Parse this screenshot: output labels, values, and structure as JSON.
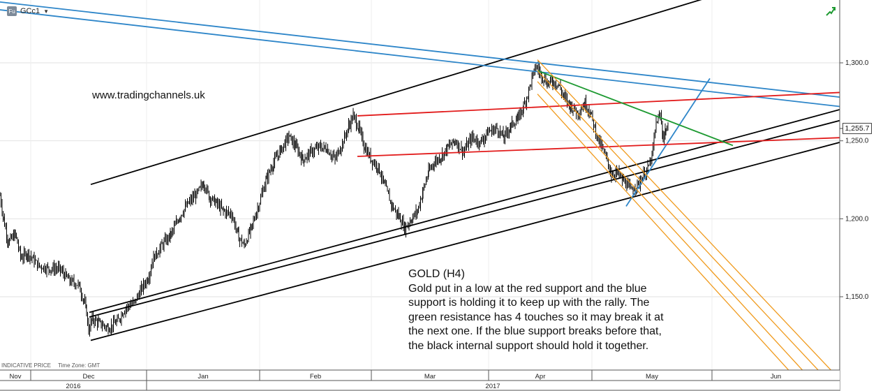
{
  "ticker": {
    "badge": "Fu",
    "symbol": "GCc1"
  },
  "watermark": "www.tradingchannels.uk",
  "annotation": {
    "title": "GOLD (H4)",
    "lines": [
      "Gold put in a low at the red support and the blue",
      "support is holding it to keep up with the rally. The",
      "green resistance has 4 touches so it may break it at",
      "the next one. If the blue support breaks before that,",
      "the black internal support should hold it together."
    ]
  },
  "footer": {
    "left": "INDICATIVE PRICE",
    "tz": "Time Zone: GMT"
  },
  "current_price": "1,255.7",
  "colors": {
    "price": "#000000",
    "black_line": "#000000",
    "blue_line": "#2e86c9",
    "red_line": "#e21b1b",
    "green_line": "#1e9a32",
    "orange_line": "#f09a1c",
    "axis": "#555555",
    "grid": "#e2e2e2"
  },
  "chart_data": {
    "type": "line",
    "style": "ohlc-bars",
    "ylim": [
      1100,
      1345
    ],
    "y_ticks": [
      1150,
      1200,
      1250,
      1300
    ],
    "y_tick_labels": [
      "1,150.0",
      "1,200.0",
      "1,250.0",
      "1,300.0"
    ],
    "month_labels": [
      "Nov",
      "Dec",
      "Jan",
      "Feb",
      "Mar",
      "Apr",
      "May",
      "Jun"
    ],
    "year_labels": [
      "2016",
      "2017"
    ],
    "grid": true,
    "series": [
      {
        "values": [
          [
            0,
            1215
          ],
          [
            5,
            1200
          ],
          [
            12,
            1185
          ],
          [
            22,
            1190
          ],
          [
            30,
            1175
          ],
          [
            40,
            1178
          ],
          [
            55,
            1170
          ],
          [
            70,
            1168
          ],
          [
            85,
            1168
          ],
          [
            100,
            1160
          ],
          [
            112,
            1158
          ],
          [
            120,
            1148
          ],
          [
            124,
            1140
          ],
          [
            127,
            1128
          ],
          [
            132,
            1136
          ],
          [
            142,
            1133
          ],
          [
            155,
            1130
          ],
          [
            168,
            1134
          ],
          [
            180,
            1143
          ],
          [
            192,
            1146
          ],
          [
            204,
            1156
          ],
          [
            212,
            1162
          ],
          [
            220,
            1175
          ],
          [
            232,
            1183
          ],
          [
            245,
            1190
          ],
          [
            258,
            1202
          ],
          [
            270,
            1210
          ],
          [
            282,
            1216
          ],
          [
            292,
            1223
          ],
          [
            300,
            1214
          ],
          [
            310,
            1210
          ],
          [
            320,
            1205
          ],
          [
            332,
            1203
          ],
          [
            342,
            1188
          ],
          [
            350,
            1183
          ],
          [
            360,
            1194
          ],
          [
            372,
            1211
          ],
          [
            382,
            1226
          ],
          [
            392,
            1236
          ],
          [
            402,
            1244
          ],
          [
            414,
            1253
          ],
          [
            424,
            1246
          ],
          [
            434,
            1238
          ],
          [
            446,
            1243
          ],
          [
            458,
            1246
          ],
          [
            468,
            1245
          ],
          [
            480,
            1238
          ],
          [
            492,
            1250
          ],
          [
            500,
            1260
          ],
          [
            506,
            1266
          ],
          [
            514,
            1258
          ],
          [
            522,
            1246
          ],
          [
            532,
            1238
          ],
          [
            542,
            1233
          ],
          [
            552,
            1220
          ],
          [
            562,
            1208
          ],
          [
            572,
            1201
          ],
          [
            580,
            1194
          ],
          [
            590,
            1200
          ],
          [
            598,
            1205
          ],
          [
            606,
            1218
          ],
          [
            614,
            1230
          ],
          [
            622,
            1236
          ],
          [
            632,
            1240
          ],
          [
            642,
            1246
          ],
          [
            652,
            1250
          ],
          [
            664,
            1243
          ],
          [
            676,
            1252
          ],
          [
            688,
            1249
          ],
          [
            700,
            1256
          ],
          [
            712,
            1258
          ],
          [
            722,
            1252
          ],
          [
            732,
            1260
          ],
          [
            742,
            1264
          ],
          [
            750,
            1272
          ],
          [
            756,
            1280
          ],
          [
            762,
            1290
          ],
          [
            768,
            1298
          ],
          [
            776,
            1292
          ],
          [
            784,
            1287
          ],
          [
            792,
            1288
          ],
          [
            800,
            1286
          ],
          [
            808,
            1278
          ],
          [
            818,
            1272
          ],
          [
            828,
            1268
          ],
          [
            838,
            1274
          ],
          [
            846,
            1268
          ],
          [
            852,
            1258
          ],
          [
            858,
            1250
          ],
          [
            864,
            1244
          ],
          [
            870,
            1237
          ],
          [
            876,
            1228
          ],
          [
            884,
            1230
          ],
          [
            892,
            1225
          ],
          [
            898,
            1222
          ],
          [
            904,
            1218
          ],
          [
            910,
            1221
          ],
          [
            916,
            1223
          ],
          [
            922,
            1228
          ],
          [
            928,
            1232
          ],
          [
            934,
            1240
          ],
          [
            940,
            1262
          ],
          [
            946,
            1266
          ],
          [
            950,
            1252
          ],
          [
            954,
            1258
          ],
          [
            958,
            1256
          ]
        ]
      }
    ],
    "trendlines": [
      {
        "color": "black",
        "points": [
          [
            130,
            1222
          ],
          [
            1111,
            1355
          ]
        ]
      },
      {
        "color": "black",
        "points": [
          [
            128,
            1140
          ],
          [
            1203,
            1270
          ]
        ]
      },
      {
        "color": "black",
        "points": [
          [
            128,
            1137
          ],
          [
            1203,
            1263
          ]
        ]
      },
      {
        "color": "black",
        "points": [
          [
            130,
            1122
          ],
          [
            1203,
            1249
          ]
        ]
      },
      {
        "color": "blue",
        "points": [
          [
            0,
            1339
          ],
          [
            1203,
            1278
          ]
        ]
      },
      {
        "color": "blue",
        "points": [
          [
            0,
            1334
          ],
          [
            1203,
            1272
          ]
        ]
      },
      {
        "color": "blue",
        "points": [
          [
            897,
            1208
          ],
          [
            1017,
            1290
          ]
        ]
      },
      {
        "color": "red",
        "points": [
          [
            512,
            1266
          ],
          [
            1203,
            1281
          ]
        ]
      },
      {
        "color": "red",
        "points": [
          [
            512,
            1240
          ],
          [
            1203,
            1252
          ]
        ]
      },
      {
        "color": "green",
        "points": [
          [
            770,
            1295
          ],
          [
            1050,
            1247
          ]
        ]
      },
      {
        "color": "orange",
        "points": [
          [
            770,
            1302
          ],
          [
            1203,
            1097
          ]
        ]
      },
      {
        "color": "orange",
        "points": [
          [
            770,
            1295
          ],
          [
            1193,
            1093
          ]
        ]
      },
      {
        "color": "orange",
        "points": [
          [
            770,
            1288
          ],
          [
            1170,
            1093
          ]
        ]
      },
      {
        "color": "orange",
        "points": [
          [
            770,
            1280
          ],
          [
            1150,
            1093
          ]
        ]
      }
    ]
  }
}
